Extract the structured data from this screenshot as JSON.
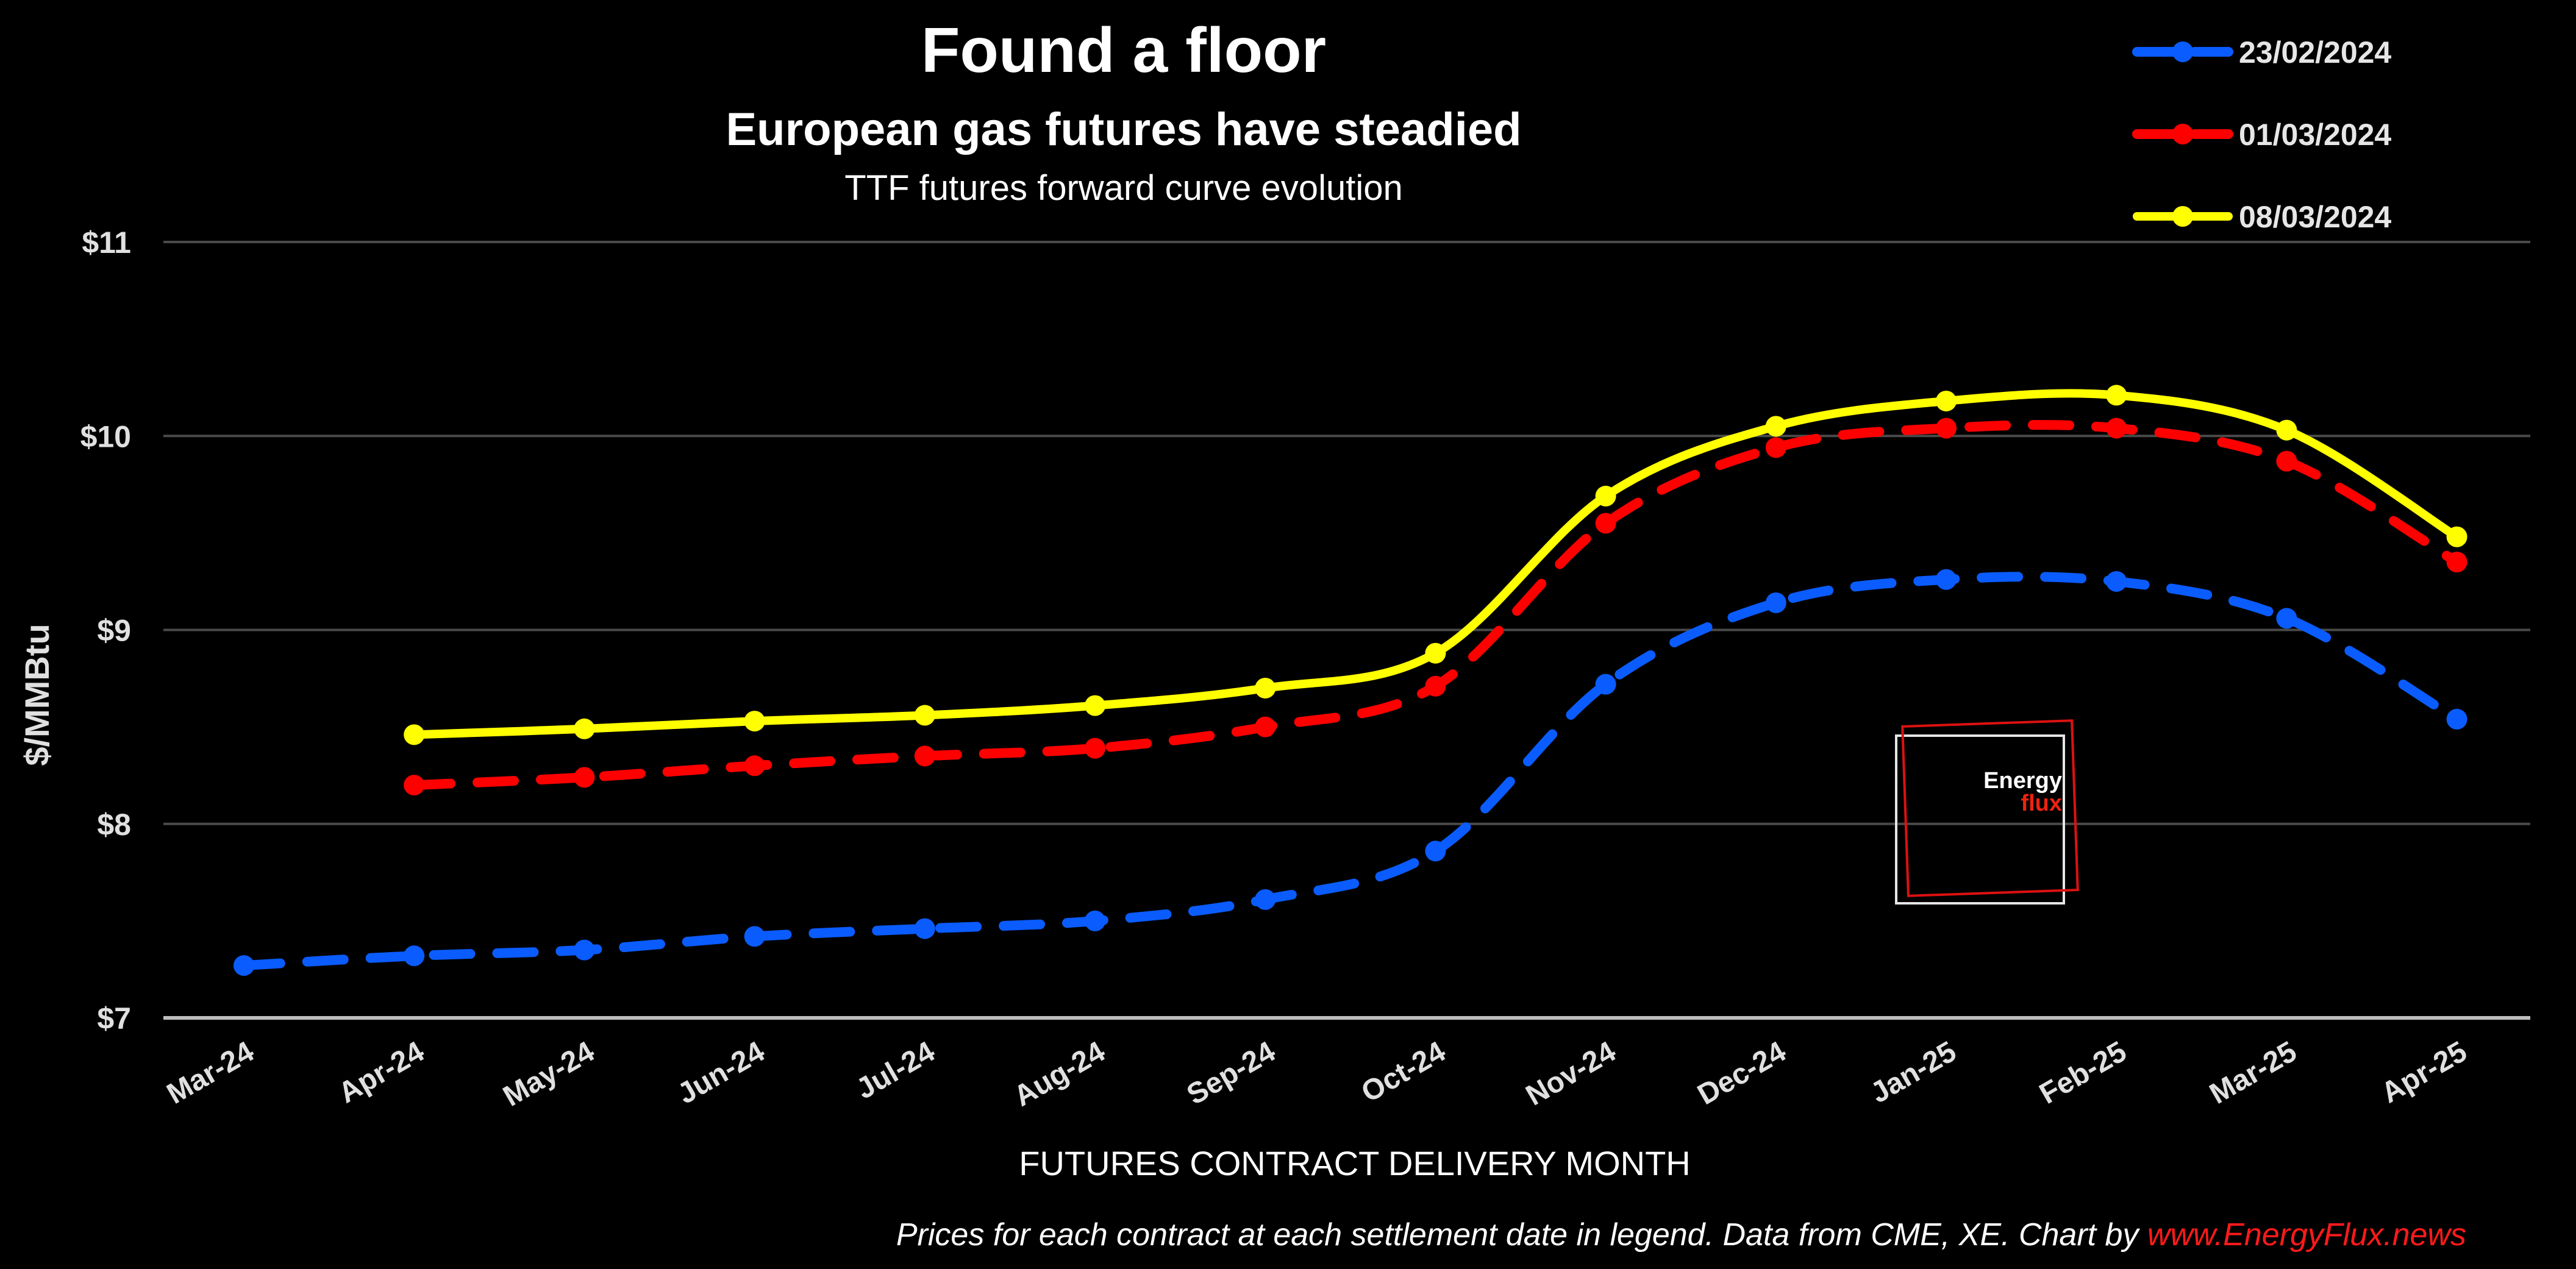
{
  "chart_data": {
    "type": "line",
    "title": "Found a floor",
    "subtitle": "European gas futures have steadied",
    "subtitle2": "TTF futures forward curve evolution",
    "xlabel": "FUTURES CONTRACT DELIVERY MONTH",
    "ylabel": "$/MMBtu",
    "ylim": [
      7,
      11
    ],
    "yticks": [
      7,
      8,
      9,
      10,
      11
    ],
    "ytick_labels": [
      "$7",
      "$8",
      "$9",
      "$10",
      "$11"
    ],
    "grid": true,
    "legend_position": "top-right",
    "categories": [
      "Mar-24",
      "Apr-24",
      "May-24",
      "Jun-24",
      "Jul-24",
      "Aug-24",
      "Sep-24",
      "Oct-24",
      "Nov-24",
      "Dec-24",
      "Jan-25",
      "Feb-25",
      "Mar-25",
      "Apr-25"
    ],
    "series": [
      {
        "name": "23/02/2024",
        "color": "#0a5cff",
        "style": "dashed",
        "values": [
          7.27,
          7.32,
          7.35,
          7.42,
          7.46,
          7.5,
          7.61,
          7.86,
          8.72,
          9.14,
          9.26,
          9.25,
          9.06,
          8.54
        ]
      },
      {
        "name": "01/03/2024",
        "color": "#ff0000",
        "style": "dashed",
        "values": [
          null,
          8.2,
          8.24,
          8.3,
          8.35,
          8.39,
          8.5,
          8.71,
          9.55,
          9.94,
          10.04,
          10.04,
          9.87,
          9.35
        ]
      },
      {
        "name": "08/03/2024",
        "color": "#ffff00",
        "style": "solid",
        "values": [
          null,
          8.46,
          8.49,
          8.53,
          8.56,
          8.61,
          8.7,
          8.88,
          9.69,
          10.05,
          10.18,
          10.21,
          10.03,
          9.48
        ]
      }
    ]
  },
  "footer": {
    "note": "Prices for each contract at each settlement date in legend. Data from CME, XE. Chart by ",
    "link": "www.EnergyFlux.news"
  },
  "logo": {
    "line1": "Energy",
    "line2": "flux"
  }
}
